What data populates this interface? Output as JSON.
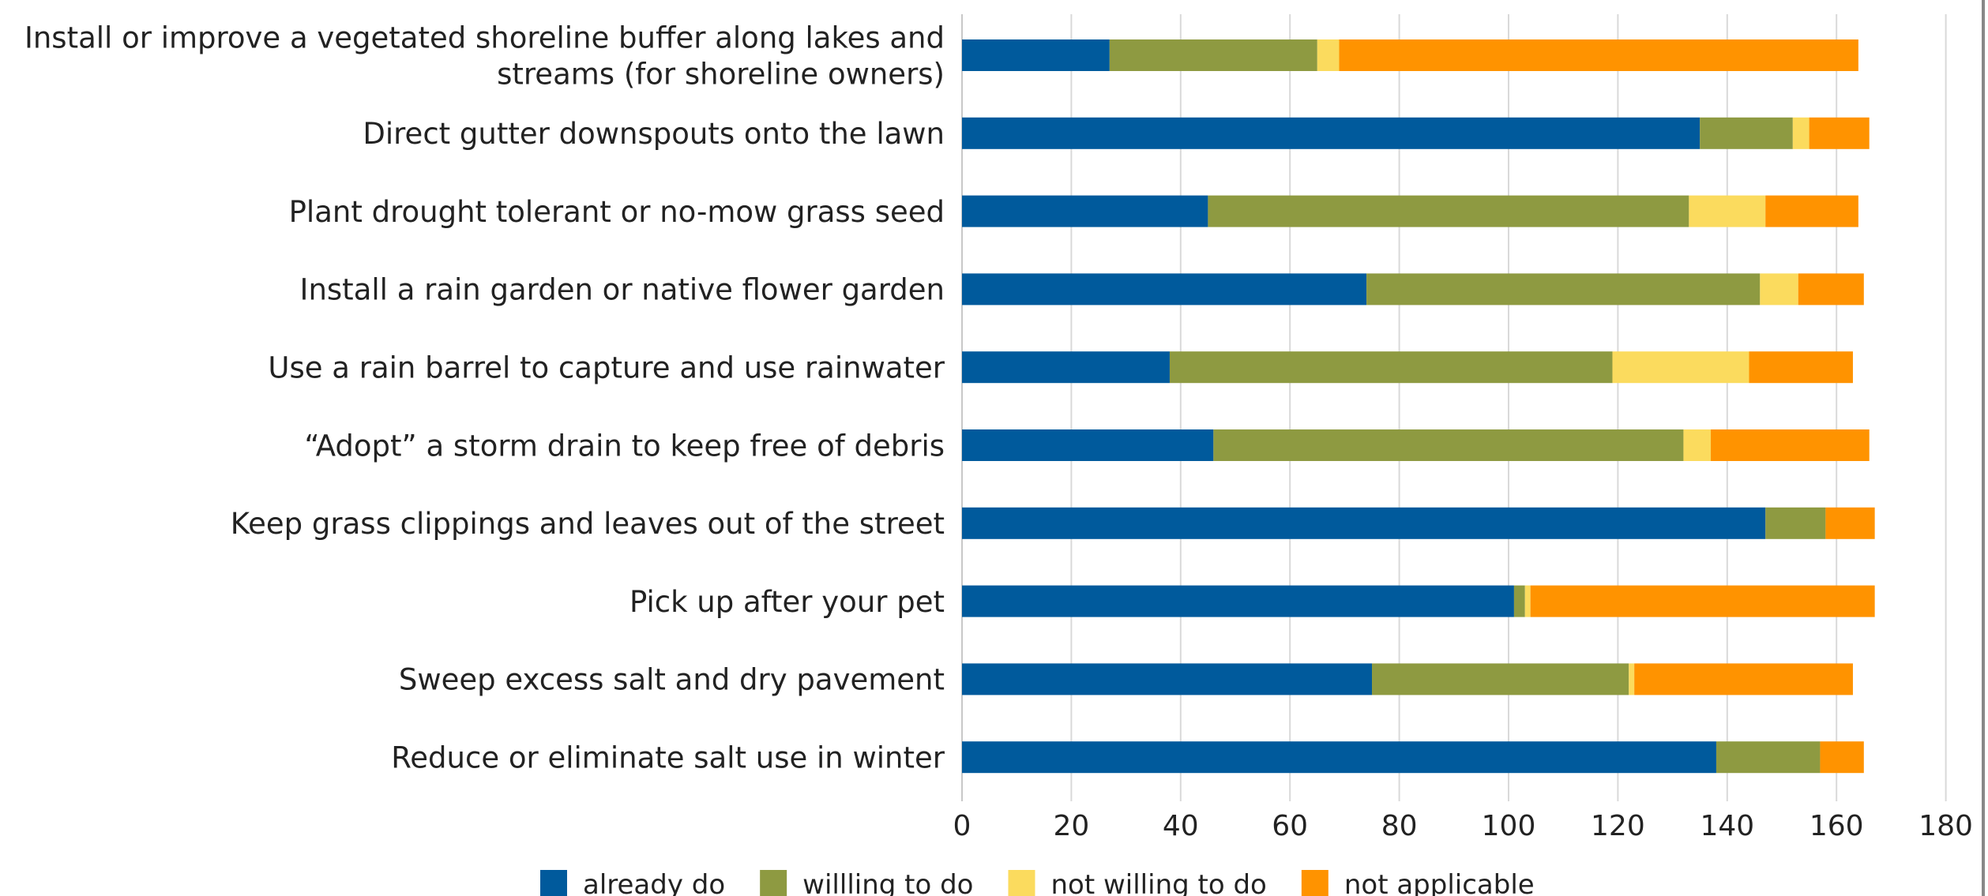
{
  "chart_data": {
    "type": "bar",
    "orientation": "horizontal",
    "stacked": true,
    "categories": [
      "Install or improve a vegetated shoreline buffer along lakes and streams (for shoreline owners)",
      "Direct gutter downspouts onto the lawn",
      "Plant drought tolerant or no-mow grass seed",
      "Install a rain garden or native flower garden",
      "Use a rain barrel to capture and use rainwater",
      "“Adopt” a storm drain to keep free of debris",
      "Keep grass clippings and leaves out of the street",
      "Pick up after your pet",
      "Sweep excess salt and dry pavement",
      "Reduce or eliminate salt use in winter"
    ],
    "category_lines": [
      [
        "Install or improve a vegetated shoreline buffer along lakes and",
        "streams (for shoreline owners)"
      ],
      [
        "Direct gutter downspouts onto the lawn"
      ],
      [
        "Plant drought tolerant or no-mow grass seed"
      ],
      [
        "Install a rain garden or native flower garden"
      ],
      [
        "Use a rain barrel to capture and use rainwater"
      ],
      [
        "“Adopt” a storm drain to keep free of debris"
      ],
      [
        "Keep grass clippings and leaves out of the street"
      ],
      [
        "Pick up after your pet"
      ],
      [
        "Sweep excess salt and dry pavement"
      ],
      [
        "Reduce or eliminate salt use in winter"
      ]
    ],
    "series": [
      {
        "name": "already do",
        "color": "#005A9C",
        "values": [
          27,
          135,
          45,
          74,
          38,
          46,
          147,
          101,
          75,
          138
        ]
      },
      {
        "name": "willling to do",
        "color": "#8E9A41",
        "values": [
          38,
          17,
          88,
          72,
          81,
          86,
          11,
          2,
          47,
          19
        ]
      },
      {
        "name": "not willing to do",
        "color": "#FBDB5E",
        "values": [
          4,
          3,
          14,
          7,
          25,
          5,
          0,
          1,
          1,
          0
        ]
      },
      {
        "name": "not applicable",
        "color": "#FF9300",
        "values": [
          95,
          11,
          17,
          12,
          19,
          29,
          9,
          63,
          40,
          8
        ]
      }
    ],
    "xlim": [
      0,
      180
    ],
    "xticks": [
      0,
      20,
      40,
      60,
      80,
      100,
      120,
      140,
      160,
      180
    ],
    "grid": true,
    "legend_position": "bottom"
  }
}
